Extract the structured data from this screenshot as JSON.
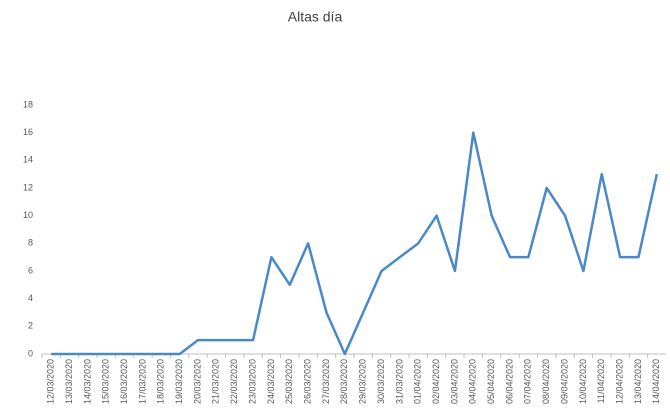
{
  "chart_data": {
    "type": "line",
    "title": "Altas día",
    "categories": [
      "12/03/2020",
      "13/03/2020",
      "14/03/2020",
      "15/03/2020",
      "16/03/2020",
      "17/03/2020",
      "18/03/2020",
      "19/03/2020",
      "20/03/2020",
      "21/03/2020",
      "22/03/2020",
      "23/03/2020",
      "24/03/2020",
      "25/03/2020",
      "26/03/2020",
      "27/03/2020",
      "28/03/2020",
      "29/03/2020",
      "30/03/2020",
      "31/03/2020",
      "01/04/2020",
      "02/04/2020",
      "03/04/2020",
      "04/04/2020",
      "05/04/2020",
      "06/04/2020",
      "07/04/2020",
      "08/04/2020",
      "09/04/2020",
      "10/04/2020",
      "11/04/2020",
      "12/04/2020",
      "13/04/2020",
      "14/04/2020"
    ],
    "values": [
      0,
      0,
      0,
      0,
      0,
      0,
      0,
      0,
      1,
      1,
      1,
      1,
      7,
      5,
      8,
      3,
      0,
      3,
      6,
      7,
      8,
      10,
      6,
      16,
      10,
      7,
      7,
      12,
      10,
      6,
      13,
      7,
      7,
      13
    ],
    "color": "#4a89c8",
    "ylim": [
      0,
      18
    ],
    "yticks": [
      0,
      2,
      4,
      6,
      8,
      10,
      12,
      14,
      16,
      18
    ],
    "grid": false
  }
}
